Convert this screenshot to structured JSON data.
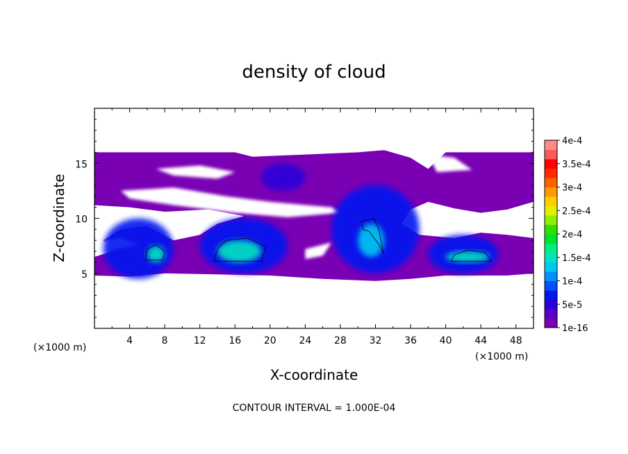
{
  "chart_data": {
    "type": "heatmap",
    "title": "density of cloud",
    "xlabel": "X-coordinate",
    "ylabel": "Z-coordinate",
    "x_unit": "(×1000 m)",
    "z_unit": "(×1000 m)",
    "xlim": [
      0,
      50
    ],
    "ylim": [
      0,
      20
    ],
    "x_ticks": [
      "4",
      "8",
      "12",
      "16",
      "20",
      "24",
      "28",
      "32",
      "36",
      "40",
      "44",
      "48"
    ],
    "y_ticks": [
      "5",
      "10",
      "15"
    ],
    "contour_note": "CONTOUR INTERVAL = 1.000E-04",
    "colorbar": {
      "labels": [
        "1e-16",
        "5e-5",
        "1e-4",
        "1.5e-4",
        "2e-4",
        "2.5e-4",
        "3e-4",
        "3.5e-4",
        "4e-4"
      ],
      "colors": [
        "#7a00b4",
        "#5a00c8",
        "#2a00d8",
        "#0018f0",
        "#0050ff",
        "#0090ff",
        "#00c8f0",
        "#00e6c0",
        "#00ee80",
        "#00e030",
        "#30e000",
        "#90ee00",
        "#e0f000",
        "#ffd000",
        "#ff9a00",
        "#ff6000",
        "#ff2a00",
        "#ff0000",
        "#ff5a5a",
        "#ff8a8a"
      ]
    },
    "regions": [
      {
        "level": 1,
        "x": [
          0,
          50
        ],
        "z": [
          4.5,
          16
        ]
      },
      {
        "level": 3,
        "x": [
          1,
          9
        ],
        "z": [
          4.5,
          10
        ]
      },
      {
        "level": 3,
        "x": [
          12,
          22
        ],
        "z": [
          5,
          10
        ]
      },
      {
        "level": 3,
        "x": [
          27,
          37
        ],
        "z": [
          5,
          13
        ]
      },
      {
        "level": 3,
        "x": [
          38,
          46
        ],
        "z": [
          5,
          8.5
        ]
      },
      {
        "level": 2,
        "x": [
          19,
          24
        ],
        "z": [
          12.5,
          15
        ]
      },
      {
        "level": 7,
        "x": [
          6,
          8
        ],
        "z": [
          6,
          7.5
        ]
      },
      {
        "level": 7,
        "x": [
          14,
          19
        ],
        "z": [
          6,
          8
        ]
      },
      {
        "level": 7,
        "x": [
          40,
          45
        ],
        "z": [
          6,
          7
        ]
      },
      {
        "level": 6,
        "x": [
          30,
          33
        ],
        "z": [
          6.5,
          9.5
        ]
      }
    ],
    "contour_lines_at": [
      "1e-4"
    ]
  }
}
